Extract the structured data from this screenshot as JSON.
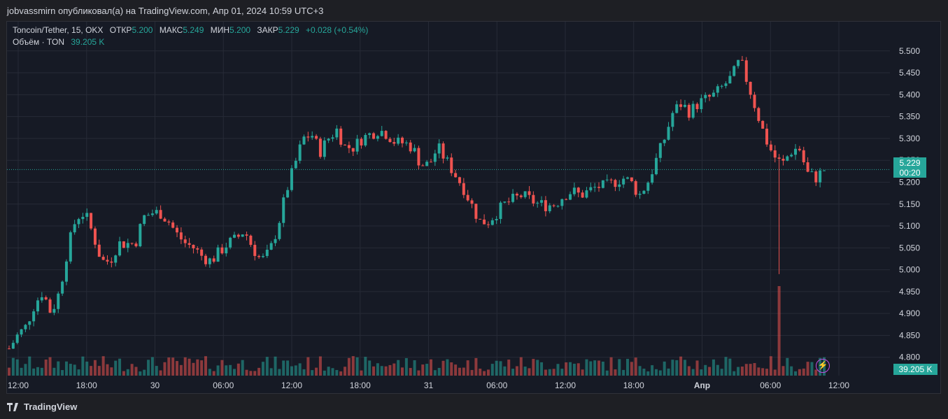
{
  "header": {
    "text": "jobvassmirn опубликовал(а) на TradingView.com, Апр 01, 2024 10:59 UTC+3"
  },
  "legend": {
    "symbol": "Toncoin/Tether, 15, OKX",
    "open_label": "ОТКР",
    "open_value": "5.200",
    "high_label": "МАКС",
    "high_value": "5.249",
    "low_label": "МИН",
    "low_value": "5.200",
    "close_label": "ЗАКР",
    "close_value": "5.229",
    "change": "+0.028 (+0.54%)",
    "volume_label": "Объём · TON",
    "volume_value": "39.205 K"
  },
  "price_tag": {
    "price": "5.229",
    "countdown": "00:20"
  },
  "volume_tag": "39.205 K",
  "brand": "TradingView",
  "colors": {
    "up": "#26a69a",
    "down": "#ef5350",
    "background": "#161a25",
    "grid": "#262a36",
    "text": "#d1d4dc"
  },
  "chart_data": {
    "type": "candlestick",
    "title": "Toncoin/Tether, 15, OKX",
    "y_ticks": [
      "4.800",
      "4.850",
      "4.900",
      "4.950",
      "5.000",
      "5.050",
      "5.100",
      "5.150",
      "5.200",
      "5.250",
      "5.300",
      "5.350",
      "5.400",
      "5.450",
      "5.500"
    ],
    "ylim": [
      4.79,
      5.53
    ],
    "x_ticks": [
      "12:00",
      "18:00",
      "30",
      "06:00",
      "12:00",
      "18:00",
      "31",
      "06:00",
      "12:00",
      "18:00",
      "Апр",
      "06:00",
      "12:00"
    ],
    "bold_x_ticks": [
      "Апр"
    ],
    "last_price": 5.229,
    "grid": true,
    "price_series": [
      {
        "t": 0,
        "p": 4.82
      },
      {
        "t": 0.5,
        "p": 4.85
      },
      {
        "t": 1.0,
        "p": 4.87
      },
      {
        "t": 1.5,
        "p": 4.92
      },
      {
        "t": 2.0,
        "p": 4.95
      },
      {
        "t": 2.5,
        "p": 4.9
      },
      {
        "t": 3.0,
        "p": 4.95
      },
      {
        "t": 3.5,
        "p": 5.05
      },
      {
        "t": 4.0,
        "p": 5.12
      },
      {
        "t": 4.5,
        "p": 5.13
      },
      {
        "t": 5.0,
        "p": 5.08
      },
      {
        "t": 5.5,
        "p": 5.02
      },
      {
        "t": 6.0,
        "p": 5.02
      },
      {
        "t": 6.5,
        "p": 5.06
      },
      {
        "t": 7.0,
        "p": 5.06
      },
      {
        "t": 7.5,
        "p": 5.06
      },
      {
        "t": 8.0,
        "p": 5.12
      },
      {
        "t": 8.5,
        "p": 5.13
      },
      {
        "t": 9.0,
        "p": 5.13
      },
      {
        "t": 9.5,
        "p": 5.11
      },
      {
        "t": 10.0,
        "p": 5.08
      },
      {
        "t": 10.5,
        "p": 5.06
      },
      {
        "t": 11.0,
        "p": 5.05
      },
      {
        "t": 11.5,
        "p": 5.03
      },
      {
        "t": 12.0,
        "p": 5.02
      },
      {
        "t": 12.5,
        "p": 5.04
      },
      {
        "t": 13.0,
        "p": 5.06
      },
      {
        "t": 13.5,
        "p": 5.07
      },
      {
        "t": 14.0,
        "p": 5.09
      },
      {
        "t": 14.5,
        "p": 5.05
      },
      {
        "t": 15.0,
        "p": 5.02
      },
      {
        "t": 15.5,
        "p": 5.04
      },
      {
        "t": 16.0,
        "p": 5.1
      },
      {
        "t": 16.5,
        "p": 5.18
      },
      {
        "t": 17.0,
        "p": 5.24
      },
      {
        "t": 17.5,
        "p": 5.3
      },
      {
        "t": 18.0,
        "p": 5.31
      },
      {
        "t": 18.5,
        "p": 5.27
      },
      {
        "t": 19.0,
        "p": 5.3
      },
      {
        "t": 19.5,
        "p": 5.32
      },
      {
        "t": 20.0,
        "p": 5.28
      },
      {
        "t": 20.5,
        "p": 5.28
      },
      {
        "t": 21.0,
        "p": 5.3
      },
      {
        "t": 21.5,
        "p": 5.31
      },
      {
        "t": 22.0,
        "p": 5.32
      },
      {
        "t": 22.5,
        "p": 5.31
      },
      {
        "t": 23.0,
        "p": 5.29
      },
      {
        "t": 23.5,
        "p": 5.29
      },
      {
        "t": 24.0,
        "p": 5.28
      },
      {
        "t": 24.5,
        "p": 5.24
      },
      {
        "t": 25.0,
        "p": 5.24
      },
      {
        "t": 25.5,
        "p": 5.28
      },
      {
        "t": 26.0,
        "p": 5.25
      },
      {
        "t": 26.5,
        "p": 5.22
      },
      {
        "t": 27.0,
        "p": 5.19
      },
      {
        "t": 27.5,
        "p": 5.15
      },
      {
        "t": 28.0,
        "p": 5.11
      },
      {
        "t": 28.5,
        "p": 5.11
      },
      {
        "t": 29.0,
        "p": 5.13
      },
      {
        "t": 29.5,
        "p": 5.15
      },
      {
        "t": 30.0,
        "p": 5.16
      },
      {
        "t": 30.5,
        "p": 5.17
      },
      {
        "t": 31.0,
        "p": 5.16
      },
      {
        "t": 31.5,
        "p": 5.15
      },
      {
        "t": 32.0,
        "p": 5.147
      },
      {
        "t": 32.5,
        "p": 5.15
      },
      {
        "t": 33.0,
        "p": 5.17
      },
      {
        "t": 33.5,
        "p": 5.18
      },
      {
        "t": 34.0,
        "p": 5.17
      },
      {
        "t": 34.5,
        "p": 5.18
      },
      {
        "t": 35.0,
        "p": 5.19
      },
      {
        "t": 35.5,
        "p": 5.19
      },
      {
        "t": 36.0,
        "p": 5.2
      },
      {
        "t": 36.5,
        "p": 5.21
      },
      {
        "t": 37.0,
        "p": 5.2
      },
      {
        "t": 37.5,
        "p": 5.17
      },
      {
        "t": 38.0,
        "p": 5.2
      },
      {
        "t": 38.5,
        "p": 5.25
      },
      {
        "t": 39.0,
        "p": 5.3
      },
      {
        "t": 39.5,
        "p": 5.36
      },
      {
        "t": 40.0,
        "p": 5.38
      },
      {
        "t": 40.5,
        "p": 5.36
      },
      {
        "t": 41.0,
        "p": 5.38
      },
      {
        "t": 41.5,
        "p": 5.39
      },
      {
        "t": 42.0,
        "p": 5.4
      },
      {
        "t": 42.5,
        "p": 5.42
      },
      {
        "t": 43.0,
        "p": 5.44
      },
      {
        "t": 43.5,
        "p": 5.48
      },
      {
        "t": 44.0,
        "p": 5.42
      },
      {
        "t": 44.5,
        "p": 5.36
      },
      {
        "t": 45.0,
        "p": 5.3
      },
      {
        "t": 45.5,
        "p": 5.26
      },
      {
        "t": 46.0,
        "p": 5.24
      },
      {
        "t": 46.5,
        "p": 5.27
      },
      {
        "t": 47.0,
        "p": 5.28
      },
      {
        "t": 47.5,
        "p": 5.22
      },
      {
        "t": 48.0,
        "p": 5.21
      },
      {
        "t": 48.5,
        "p": 5.229
      }
    ]
  }
}
